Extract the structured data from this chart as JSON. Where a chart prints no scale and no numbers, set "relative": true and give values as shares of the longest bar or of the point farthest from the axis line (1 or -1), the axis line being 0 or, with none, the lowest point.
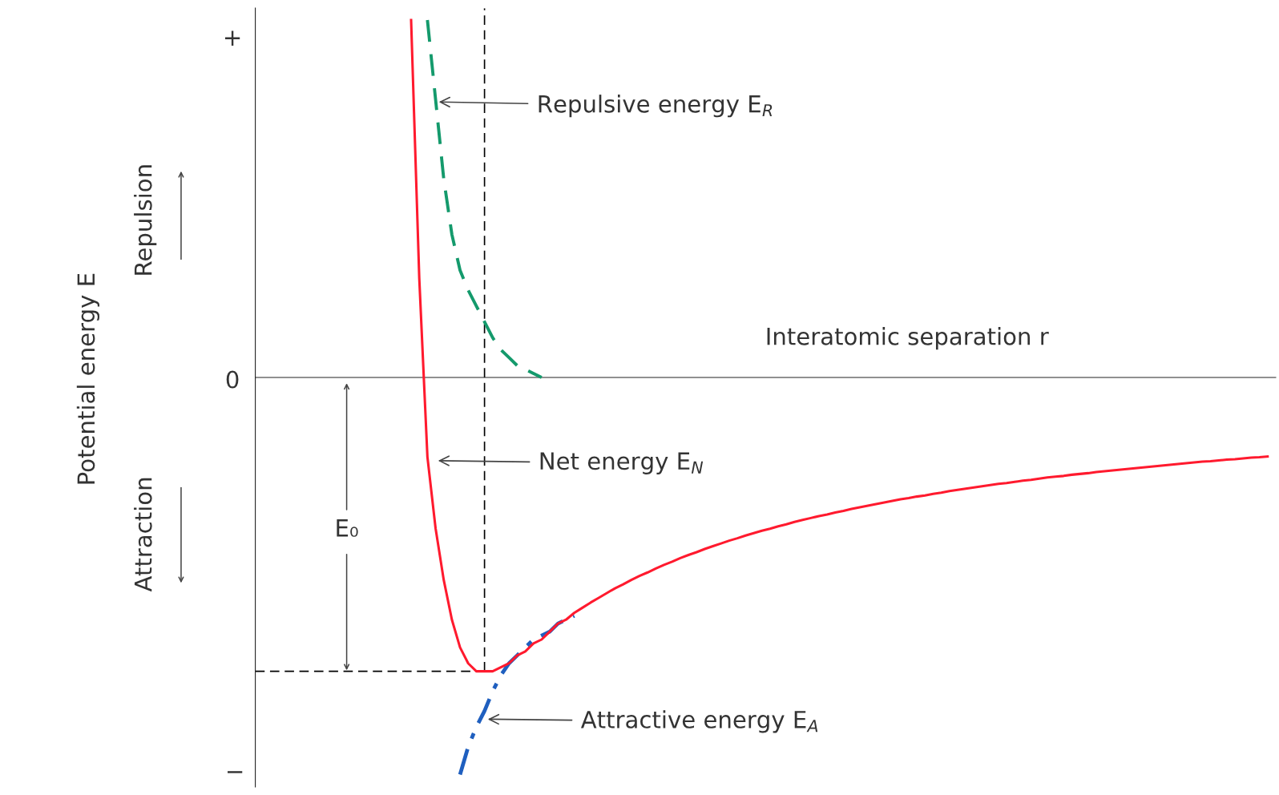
{
  "chart_data": {
    "type": "line",
    "relative": true,
    "xlabel": "Interatomic separation r",
    "categories": [
      null,
      null,
      null,
      null,
      null,
      null,
      null,
      null,
      null,
      null,
      null,
      null,
      null,
      null,
      null,
      null,
      null,
      null,
      null,
      null,
      null,
      null,
      null,
      null,
      null,
      null,
      null,
      null,
      null,
      null,
      null,
      null,
      null,
      null,
      null,
      null,
      null,
      null,
      null,
      null,
      null,
      null,
      null,
      null,
      null,
      null,
      null,
      null,
      null,
      null,
      null,
      null,
      null,
      null,
      null,
      null,
      null,
      null,
      null,
      null,
      null,
      null,
      null,
      null,
      null,
      null,
      null,
      null,
      null,
      null,
      null,
      null,
      null,
      null,
      null,
      null,
      null,
      null,
      null,
      null,
      null,
      null,
      null,
      null,
      null,
      null,
      null,
      null,
      null,
      null,
      null,
      null,
      null,
      null,
      null,
      null,
      null,
      null,
      null,
      null,
      null,
      null,
      null,
      null,
      null,
      null,
      null,
      null,
      null,
      null,
      null,
      null,
      null,
      null,
      null,
      null,
      null,
      null,
      null,
      null,
      null,
      null,
      null,
      null,
      null
    ],
    "series": [
      {
        "color": "#ff1a2e",
        "line_style": "solid",
        "values": [
          null,
          null,
          null,
          null,
          null,
          null,
          null,
          null,
          null,
          null,
          null,
          null,
          null,
          null,
          null,
          null,
          null,
          null,
          null,
          0.9,
          0.25,
          -0.2,
          -0.38,
          -0.51,
          -0.61,
          -0.68,
          -0.72,
          -0.74,
          -0.74,
          -0.74,
          -0.73,
          -0.72,
          -0.7,
          -0.69,
          -0.67,
          -0.66,
          -0.64,
          -0.62,
          -0.61,
          -0.593,
          -0.58,
          -0.567,
          -0.555,
          -0.543,
          -0.531,
          -0.521,
          -0.51,
          -0.5,
          -0.491,
          -0.481,
          -0.472,
          -0.464,
          -0.455,
          -0.447,
          -0.44,
          -0.432,
          -0.425,
          -0.418,
          -0.411,
          -0.405,
          -0.398,
          -0.392,
          -0.386,
          -0.381,
          -0.375,
          -0.37,
          -0.364,
          -0.359,
          -0.354,
          -0.349,
          -0.345,
          -0.34,
          -0.336,
          -0.331,
          -0.327,
          -0.323,
          -0.319,
          -0.315,
          -0.311,
          -0.307,
          -0.304,
          -0.3,
          -0.297,
          -0.293,
          -0.29,
          -0.286,
          -0.283,
          -0.28,
          -0.277,
          -0.274,
          -0.271,
          -0.268,
          -0.266,
          -0.263,
          -0.26,
          -0.258,
          -0.255,
          -0.252,
          -0.25,
          -0.248,
          -0.245,
          -0.243,
          -0.241,
          -0.238,
          -0.236,
          -0.234,
          -0.232,
          -0.23,
          -0.228,
          -0.226,
          -0.224,
          -0.222,
          -0.22,
          -0.218,
          -0.216,
          -0.214,
          -0.212,
          -0.211,
          -0.209,
          -0.207,
          -0.206,
          -0.204,
          -0.202,
          -0.201,
          -0.199
        ]
      },
      {
        "color": "#149a6c",
        "line_style": "dashed",
        "values": [
          null,
          null,
          null,
          null,
          null,
          null,
          null,
          null,
          null,
          null,
          null,
          null,
          null,
          null,
          null,
          null,
          null,
          null,
          null,
          null,
          null,
          0.9,
          0.7,
          0.5,
          0.36,
          0.27,
          0.22,
          0.18,
          0.14,
          0.1,
          0.07,
          0.05,
          0.03,
          0.02,
          0.01,
          0.0,
          null,
          null,
          null,
          null,
          null,
          null,
          null,
          null,
          null,
          null,
          null,
          null,
          null,
          null,
          null,
          null,
          null,
          null,
          null,
          null,
          null,
          null,
          null,
          null,
          null,
          null,
          null,
          null,
          null,
          null,
          null,
          null,
          null,
          null,
          null,
          null,
          null,
          null,
          null,
          null,
          null,
          null,
          null,
          null,
          null,
          null,
          null,
          null,
          null,
          null,
          null,
          null,
          null,
          null,
          null,
          null,
          null,
          null,
          null,
          null,
          null,
          null,
          null,
          null,
          null,
          null,
          null,
          null,
          null,
          null,
          null,
          null,
          null,
          null,
          null,
          null,
          null,
          null,
          null,
          null,
          null,
          null,
          null,
          null,
          null,
          null,
          null,
          null,
          null
        ]
      },
      {
        "color": "#1f5fbf",
        "line_style": "dashdot",
        "values": [
          null,
          null,
          null,
          null,
          null,
          null,
          null,
          null,
          null,
          null,
          null,
          null,
          null,
          null,
          null,
          null,
          null,
          null,
          null,
          null,
          null,
          null,
          null,
          null,
          null,
          -1,
          -0.93,
          -0.88,
          -0.84,
          -0.79,
          -0.75,
          -0.72,
          -0.7,
          -0.68,
          -0.66,
          -0.65,
          -0.64,
          -0.62,
          -0.61,
          -0.6,
          null,
          null,
          null,
          null,
          null,
          null,
          null,
          null,
          null,
          null,
          null,
          null,
          null,
          null,
          null,
          null,
          null,
          null,
          null,
          null,
          null,
          null,
          null,
          null,
          null,
          null,
          null,
          null,
          null,
          null,
          null,
          null,
          null,
          null,
          null,
          null,
          null,
          null,
          null,
          null,
          null,
          null,
          null,
          null,
          null,
          null,
          null,
          null,
          null,
          null,
          null,
          null,
          null,
          null,
          null,
          null,
          null,
          null,
          null,
          null,
          null,
          null,
          null,
          null,
          null,
          null,
          null,
          null,
          null,
          null,
          null,
          null,
          null,
          null,
          null,
          null,
          null,
          null,
          null,
          null,
          null,
          null,
          null,
          null,
          null
        ]
      }
    ],
    "ref_lines": [
      {
        "axis": "y",
        "value": -0.74,
        "line_style": "dashed",
        "color": "#000000"
      }
    ],
    "annotations": [
      "Repulsive energy E$_{R}$",
      "Net energy E$_{N}$",
      "Attractive energy E$_{A}$",
      "E₀",
      "Repulsion",
      "Attraction",
      "+",
      "0",
      "−",
      "Potential energy E"
    ]
  }
}
